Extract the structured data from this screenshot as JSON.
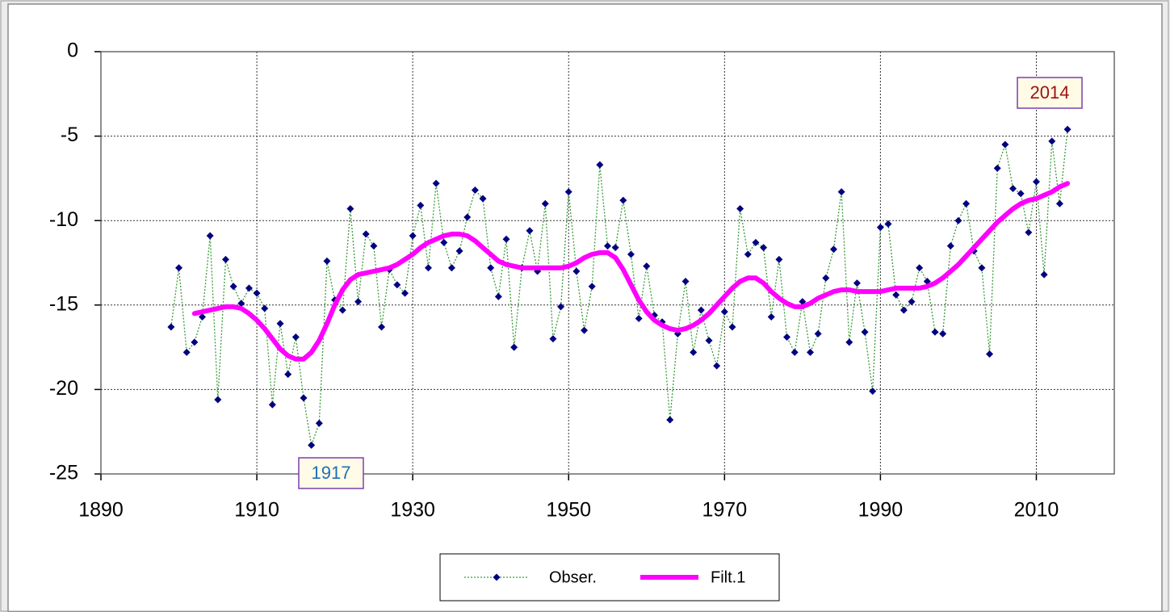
{
  "chart_data": {
    "type": "line",
    "x": [
      1899,
      1900,
      1901,
      1902,
      1903,
      1904,
      1905,
      1906,
      1907,
      1908,
      1909,
      1910,
      1911,
      1912,
      1913,
      1914,
      1915,
      1916,
      1917,
      1918,
      1919,
      1920,
      1921,
      1922,
      1923,
      1924,
      1925,
      1926,
      1927,
      1928,
      1929,
      1930,
      1931,
      1932,
      1933,
      1934,
      1935,
      1936,
      1937,
      1938,
      1939,
      1940,
      1941,
      1942,
      1943,
      1944,
      1945,
      1946,
      1947,
      1948,
      1949,
      1950,
      1951,
      1952,
      1953,
      1954,
      1955,
      1956,
      1957,
      1958,
      1959,
      1960,
      1961,
      1962,
      1963,
      1964,
      1965,
      1966,
      1967,
      1968,
      1969,
      1970,
      1971,
      1972,
      1973,
      1974,
      1975,
      1976,
      1977,
      1978,
      1979,
      1980,
      1981,
      1982,
      1983,
      1984,
      1985,
      1986,
      1987,
      1988,
      1989,
      1990,
      1991,
      1992,
      1993,
      1994,
      1995,
      1996,
      1997,
      1998,
      1999,
      2000,
      2001,
      2002,
      2003,
      2004,
      2005,
      2006,
      2007,
      2008,
      2009,
      2010,
      2011,
      2012,
      2013,
      2014
    ],
    "series": [
      {
        "name": "Obser.",
        "color": "#000080",
        "line_color": "#3a9a3a",
        "values": [
          -16.3,
          -12.8,
          -17.8,
          -17.2,
          -15.7,
          -10.9,
          -20.6,
          -12.3,
          -13.9,
          -14.9,
          -14.0,
          -14.3,
          -15.2,
          -20.9,
          -16.1,
          -19.1,
          -16.9,
          -20.5,
          -23.3,
          -22.0,
          -12.4,
          -14.7,
          -15.3,
          -9.3,
          -14.8,
          -10.8,
          -11.5,
          -16.3,
          -12.9,
          -13.8,
          -14.3,
          -10.9,
          -9.1,
          -12.8,
          -7.8,
          -11.3,
          -12.8,
          -11.8,
          -9.8,
          -8.2,
          -8.7,
          -12.8,
          -14.5,
          -11.1,
          -17.5,
          -12.8,
          -10.6,
          -13.0,
          -9.0,
          -17.0,
          -15.1,
          -8.3,
          -13.0,
          -16.5,
          -13.9,
          -6.7,
          -11.5,
          -11.6,
          -8.8,
          -12.0,
          -15.8,
          -12.7,
          -15.6,
          -16.0,
          -21.8,
          -16.7,
          -13.6,
          -17.8,
          -15.3,
          -17.1,
          -18.6,
          -15.4,
          -16.3,
          -9.3,
          -12.0,
          -11.3,
          -11.6,
          -15.7,
          -12.3,
          -16.9,
          -17.8,
          -14.8,
          -17.8,
          -16.7,
          -13.4,
          -11.7,
          -8.3,
          -17.2,
          -13.7,
          -16.6,
          -20.1,
          -10.4,
          -10.2,
          -14.4,
          -15.3,
          -14.8,
          -12.8,
          -13.6,
          -16.6,
          -16.7,
          -11.5,
          -10.0,
          -9.0,
          -11.8,
          -12.8,
          -17.9,
          -6.9,
          -5.5,
          -8.1,
          -8.4,
          -10.7,
          -7.7,
          -13.2,
          -5.3,
          -9.0,
          -4.6
        ]
      },
      {
        "name": "Filt.1",
        "color": "#ff00ff",
        "values": [
          null,
          null,
          null,
          -15.5,
          -15.4,
          -15.3,
          -15.2,
          -15.1,
          -15.1,
          -15.2,
          -15.5,
          -15.9,
          -16.4,
          -17.0,
          -17.6,
          -18.0,
          -18.2,
          -18.2,
          -17.8,
          -17.1,
          -16.1,
          -15.0,
          -14.1,
          -13.5,
          -13.2,
          -13.1,
          -13.0,
          -12.9,
          -12.8,
          -12.6,
          -12.3,
          -12.0,
          -11.6,
          -11.3,
          -11.1,
          -10.9,
          -10.8,
          -10.8,
          -10.9,
          -11.2,
          -11.6,
          -12.0,
          -12.4,
          -12.6,
          -12.7,
          -12.8,
          -12.8,
          -12.8,
          -12.8,
          -12.8,
          -12.8,
          -12.7,
          -12.5,
          -12.2,
          -12.0,
          -11.9,
          -11.9,
          -12.2,
          -12.9,
          -13.8,
          -14.7,
          -15.4,
          -15.9,
          -16.2,
          -16.4,
          -16.5,
          -16.4,
          -16.2,
          -15.9,
          -15.5,
          -15.0,
          -14.5,
          -14.0,
          -13.6,
          -13.4,
          -13.4,
          -13.7,
          -14.2,
          -14.6,
          -14.9,
          -15.1,
          -15.1,
          -14.9,
          -14.6,
          -14.4,
          -14.2,
          -14.1,
          -14.1,
          -14.2,
          -14.2,
          -14.2,
          -14.2,
          -14.1,
          -14.0,
          -14.0,
          -14.0,
          -14.0,
          -13.9,
          -13.7,
          -13.4,
          -13.0,
          -12.6,
          -12.1,
          -11.6,
          -11.1,
          -10.6,
          -10.1,
          -9.7,
          -9.3,
          -9.0,
          -8.8,
          -8.7,
          -8.5,
          -8.3,
          -8.0,
          -7.8
        ]
      }
    ],
    "xlim": [
      1890,
      2020
    ],
    "xticks": [
      1890,
      1910,
      1930,
      1950,
      1970,
      1990,
      2010
    ],
    "ylim": [
      -25,
      0
    ],
    "yticks": [
      -25,
      -20,
      -15,
      -10,
      -5,
      0
    ],
    "grid": true,
    "legend": "bottom",
    "annotations": [
      {
        "text": "1917",
        "color": "#1f6fb8"
      },
      {
        "text": "2014",
        "color": "#a01010"
      }
    ]
  }
}
